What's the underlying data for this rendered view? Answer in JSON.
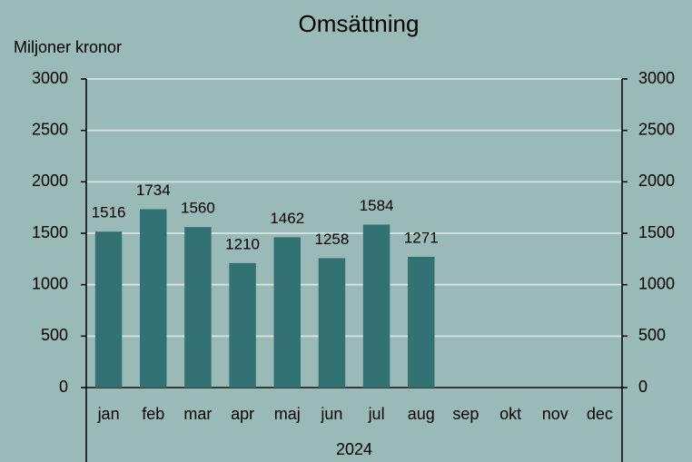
{
  "chart_data": {
    "type": "bar",
    "title": "Omsättning",
    "ylabel": "Miljoner kronor",
    "xlabel": "2024",
    "categories": [
      "jan",
      "feb",
      "mar",
      "apr",
      "maj",
      "jun",
      "jul",
      "aug",
      "sep",
      "okt",
      "nov",
      "dec"
    ],
    "values": [
      1516,
      1734,
      1560,
      1210,
      1462,
      1258,
      1584,
      1271,
      null,
      null,
      null,
      null
    ],
    "color": "#337272",
    "ylim": [
      0,
      3000
    ],
    "yticks": [
      0,
      500,
      1000,
      1500,
      2000,
      2500,
      3000
    ],
    "y2lim": [
      0,
      3000
    ],
    "y2ticks": [
      0,
      500,
      1000,
      1500,
      2000,
      2500,
      3000
    ],
    "grid": true
  }
}
